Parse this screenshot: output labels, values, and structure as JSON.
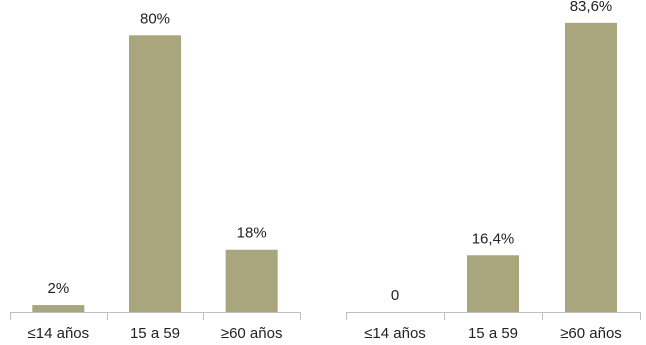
{
  "colors": {
    "bar": "#a9a57c",
    "axis": "#bfbfbf",
    "text": "#222222"
  },
  "chart_data": [
    {
      "type": "bar",
      "categories": [
        "≤14 años",
        "15 a 59",
        "≥60 años"
      ],
      "values": [
        2,
        80,
        18
      ],
      "data_labels": [
        "2%",
        "80%",
        "18%"
      ],
      "ylim": [
        0,
        85
      ],
      "grid": false,
      "legend": "none"
    },
    {
      "type": "bar",
      "categories": [
        "≤14 años",
        "15 a 59",
        "≥60 años"
      ],
      "values": [
        0,
        16.4,
        83.6
      ],
      "data_labels": [
        "0",
        "16,4%",
        "83,6%"
      ],
      "ylim": [
        0,
        85
      ],
      "grid": false,
      "legend": "none"
    }
  ]
}
